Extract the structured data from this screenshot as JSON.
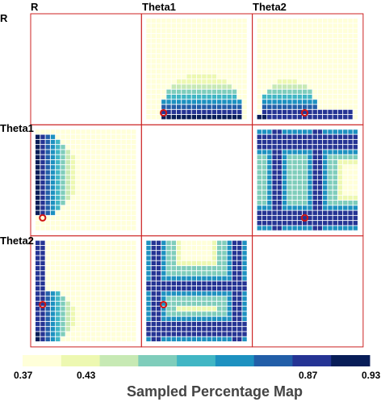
{
  "chart_data": {
    "type": "heatmap",
    "title": "Sampled Percentage Map",
    "variables": [
      "R",
      "Theta1",
      "Theta2"
    ],
    "grid_size": 20,
    "colorbar": {
      "colors": [
        "#ffffd9",
        "#edf8b1",
        "#c7e9b4",
        "#7fcdbb",
        "#41b6c4",
        "#1d91c0",
        "#225ea8",
        "#253494",
        "#081d58"
      ],
      "tick_labels": [
        "0.37",
        "0.43",
        "0.87",
        "0.93"
      ],
      "tick_values": [
        0.37,
        0.43,
        0.87,
        0.93
      ],
      "range": [
        0.37,
        0.93
      ]
    },
    "panels": [
      {
        "row": "R",
        "col": "Theta1",
        "marker": [
          0.17,
          0.07
        ]
      },
      {
        "row": "R",
        "col": "Theta2",
        "marker": [
          0.47,
          0.07
        ]
      },
      {
        "row": "Theta1",
        "col": "R",
        "marker": [
          0.07,
          0.13
        ]
      },
      {
        "row": "Theta1",
        "col": "Theta2",
        "marker": [
          0.47,
          0.13
        ]
      },
      {
        "row": "Theta2",
        "col": "R",
        "marker": [
          0.07,
          0.37
        ]
      },
      {
        "row": "Theta2",
        "col": "Theta1",
        "marker": [
          0.17,
          0.37
        ]
      }
    ]
  }
}
